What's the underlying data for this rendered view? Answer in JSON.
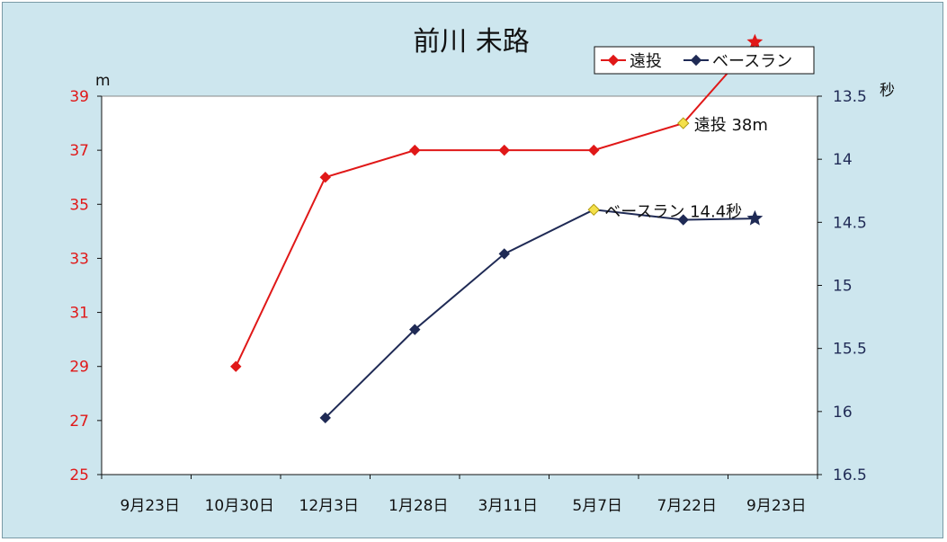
{
  "chart_data": {
    "type": "line",
    "title": "前川 未路",
    "categories": [
      "9月23日",
      "10月30日",
      "12月3日",
      "1月28日",
      "3月11日",
      "5月7日",
      "7月22日",
      "9月23日"
    ],
    "y_left": {
      "unit": "m",
      "ylim": [
        25,
        39
      ],
      "ticks": [
        25,
        27,
        29,
        31,
        33,
        35,
        37,
        39
      ],
      "color": "#e01818"
    },
    "y_right": {
      "unit": "秒",
      "ylim": [
        16.5,
        13.5
      ],
      "reversed": true,
      "tick_labels": [
        "13.5",
        "14",
        "14.5",
        "15",
        "15.5",
        "16",
        "16.5"
      ],
      "color": "#1f2a55"
    },
    "series": [
      {
        "name": "遠投",
        "axis": "left",
        "color": "#e01818",
        "points": [
          {
            "x": 1.5,
            "y": 29
          },
          {
            "x": 2.5,
            "y": 36
          },
          {
            "x": 3.5,
            "y": 37
          },
          {
            "x": 4.5,
            "y": 37
          },
          {
            "x": 5.5,
            "y": 37
          },
          {
            "x": 6.5,
            "y": 38,
            "highlight": true
          },
          {
            "x": 7.3,
            "y": 41,
            "marker": "star"
          }
        ]
      },
      {
        "name": "ベースラン",
        "axis": "right",
        "color": "#1f2a55",
        "points": [
          {
            "x": 2.5,
            "y": 16.05
          },
          {
            "x": 3.5,
            "y": 15.35
          },
          {
            "x": 4.5,
            "y": 14.75
          },
          {
            "x": 5.5,
            "y": 14.4,
            "highlight": true
          },
          {
            "x": 6.5,
            "y": 14.48
          },
          {
            "x": 7.3,
            "y": 14.47,
            "marker": "star"
          }
        ]
      }
    ],
    "annotations": [
      {
        "text": "遠投 38m",
        "series": 0,
        "point": 5
      },
      {
        "text": "ベースラン 14.4秒",
        "series": 1,
        "point": 3
      }
    ],
    "legend": {
      "position": "top-right"
    },
    "grid": false
  }
}
